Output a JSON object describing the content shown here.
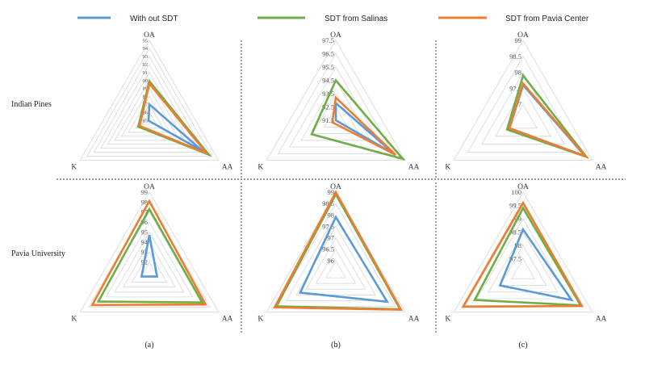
{
  "chart_data": {
    "type": "radar",
    "legend": [
      {
        "name": "With out SDT",
        "color": "#5b9bd5"
      },
      {
        "name": "SDT from Salinas",
        "color": "#70ad47"
      },
      {
        "name": "SDT from Pavia Center",
        "color": "#ed7d31"
      }
    ],
    "axes": [
      "OA",
      "AA",
      "K"
    ],
    "rows": [
      "Indian Pines",
      "Pavia University"
    ],
    "columns": [
      "(a)",
      "(b)",
      "(c)"
    ],
    "panels": [
      {
        "row": "Indian Pines",
        "column": "(a)",
        "range": [
          85,
          95
        ],
        "ticks": [
          "95",
          "94",
          "93",
          "92",
          "91",
          "90",
          "89",
          "88",
          "87",
          "86",
          "85"
        ],
        "series": [
          {
            "name": "With out SDT",
            "OA": 87.0,
            "AA": 92.7,
            "K": 85.1
          },
          {
            "name": "SDT from Salinas",
            "OA": 89.9,
            "AA": 93.6,
            "K": 86.6
          },
          {
            "name": "SDT from Pavia Center",
            "OA": 89.6,
            "AA": 93.3,
            "K": 86.4
          }
        ]
      },
      {
        "row": "Indian Pines",
        "column": "(b)",
        "range": [
          91.5,
          97.5
        ],
        "ticks": [
          "97.5",
          "96.5",
          "95.5",
          "94.5",
          "93.5",
          "92.5",
          "91.5"
        ],
        "series": [
          {
            "name": "With out SDT",
            "OA": 92.8,
            "AA": 96.6,
            "K": 91.5
          },
          {
            "name": "SDT from Salinas",
            "OA": 94.5,
            "AA": 97.3,
            "K": 93.6
          },
          {
            "name": "SDT from Pavia Center",
            "OA": 93.2,
            "AA": 96.7,
            "K": 91.8
          }
        ]
      },
      {
        "row": "Indian Pines",
        "column": "(c)",
        "range": [
          96.5,
          99
        ],
        "ticks": [
          "99",
          "98.5",
          "98",
          "97.5",
          "97"
        ],
        "series": [
          {
            "name": "With out SDT",
            "OA": 97.6,
            "AA": 98.74,
            "K": 96.99
          },
          {
            "name": "SDT from Salinas",
            "OA": 97.9,
            "AA": 98.79,
            "K": 97.08
          },
          {
            "name": "SDT from Pavia Center",
            "OA": 97.65,
            "AA": 98.77,
            "K": 97.0
          }
        ]
      },
      {
        "row": "Pavia University",
        "column": "(a)",
        "range": [
          91,
          99
        ],
        "ticks": [
          "99",
          "98",
          "97",
          "96",
          "95",
          "94",
          "93",
          "92"
        ],
        "series": [
          {
            "name": "With out SDT",
            "OA": 94.7,
            "AA": 91.9,
            "K": 91.9
          },
          {
            "name": "SDT from Salinas",
            "OA": 97.3,
            "AA": 97.1,
            "K": 96.9
          },
          {
            "name": "SDT from Pavia Center",
            "OA": 98.1,
            "AA": 97.5,
            "K": 97.6
          }
        ]
      },
      {
        "row": "Pavia University",
        "column": "(b)",
        "range": [
          95.5,
          99
        ],
        "ticks": [
          "99",
          "98.5",
          "98",
          "97.5",
          "97",
          "96.5",
          "96"
        ],
        "series": [
          {
            "name": "With out SDT",
            "OA": 97.9,
            "AA": 98.1,
            "K": 97.3
          },
          {
            "name": "SDT from Salinas",
            "OA": 98.9,
            "AA": 98.75,
            "K": 98.5
          },
          {
            "name": "SDT from Pavia Center",
            "OA": 99.0,
            "AA": 98.8,
            "K": 98.6
          }
        ]
      },
      {
        "row": "Pavia University",
        "column": "(c)",
        "range": [
          97,
          100
        ],
        "ticks": [
          "100",
          "99.5",
          "99",
          "98.5",
          "98",
          "97.5"
        ],
        "series": [
          {
            "name": "With out SDT",
            "OA": 98.6,
            "AA": 99.1,
            "K": 98.0
          },
          {
            "name": "SDT from Salinas",
            "OA": 99.4,
            "AA": 99.5,
            "K": 99.1
          },
          {
            "name": "SDT from Pavia Center",
            "OA": 99.6,
            "AA": 99.55,
            "K": 99.6
          }
        ]
      }
    ]
  }
}
